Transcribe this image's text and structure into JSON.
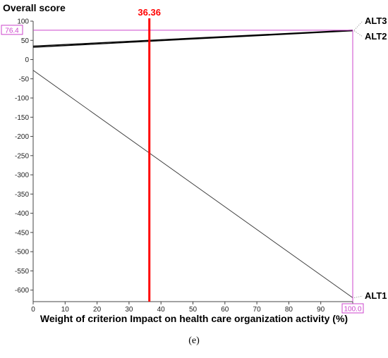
{
  "chart_data": {
    "type": "line",
    "ylabel": "Overall score",
    "xlabel": "Weight of criterion Impact on health care organization activity (%)",
    "x_ticks": [
      0,
      10,
      20,
      30,
      40,
      50,
      60,
      70,
      80,
      90,
      100
    ],
    "y_ticks": [
      100,
      50,
      0,
      -50,
      -100,
      -150,
      -200,
      -250,
      -300,
      -350,
      -400,
      -450,
      -500,
      -550,
      -600
    ],
    "xlim": [
      0,
      100
    ],
    "ylim": [
      -630,
      100
    ],
    "grid": false,
    "series": [
      {
        "name": "ALT3",
        "x": [
          0,
          100
        ],
        "y": [
          35,
          76.4
        ],
        "color": "#000000"
      },
      {
        "name": "ALT2",
        "x": [
          0,
          100
        ],
        "y": [
          32,
          75
        ],
        "color": "#000000"
      },
      {
        "name": "ALT1",
        "x": [
          0,
          100
        ],
        "y": [
          -28,
          -620
        ],
        "color": "#333333"
      }
    ],
    "current_weight": {
      "value": 36.36,
      "label": "36.36",
      "color": "#ff0000"
    },
    "marker_y": {
      "value": 76.4,
      "label": "76.4",
      "color": "#cc44cc"
    },
    "marker_x": {
      "value": 100,
      "label": "100.0",
      "color": "#cc44cc"
    }
  },
  "caption": "(e)"
}
